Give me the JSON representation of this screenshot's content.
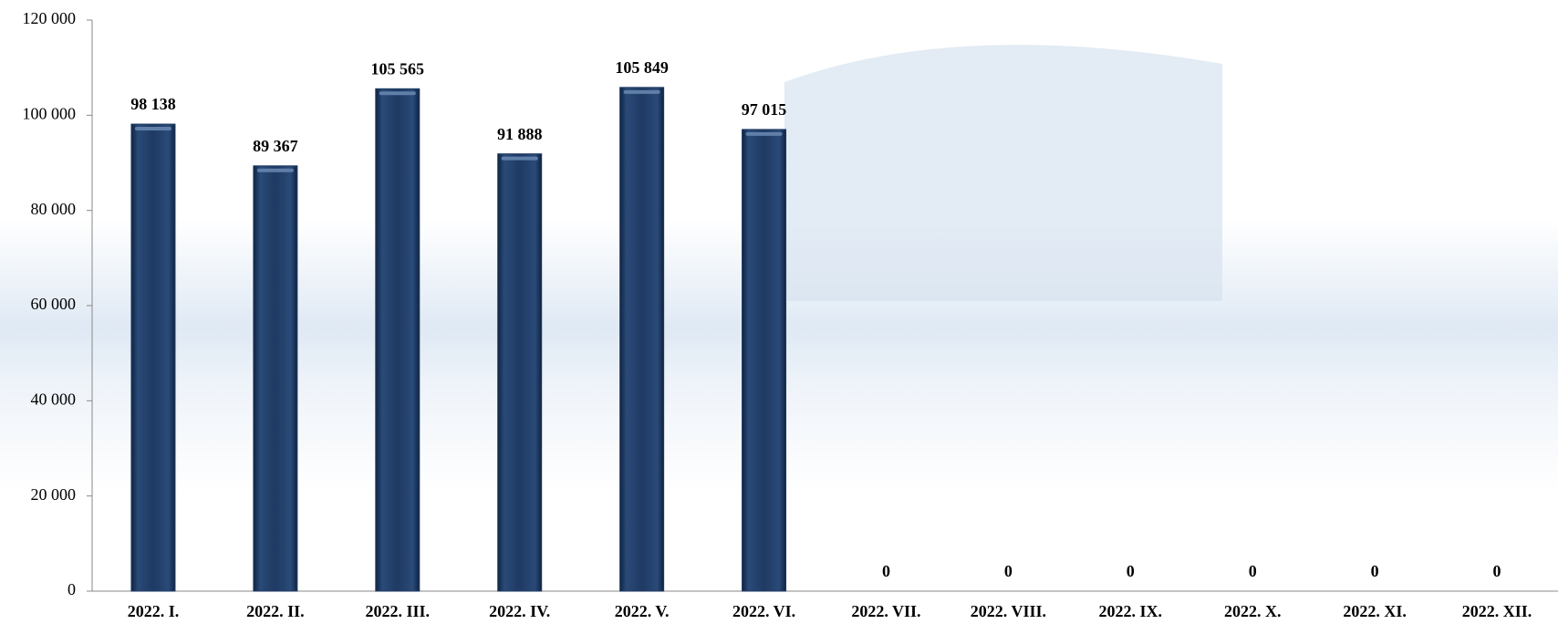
{
  "chart_data": {
    "type": "bar",
    "categories": [
      "2022. I.",
      "2022. II.",
      "2022. III.",
      "2022. IV.",
      "2022. V.",
      "2022. VI.",
      "2022. VII.",
      "2022. VIII.",
      "2022. IX.",
      "2022. X.",
      "2022. XI.",
      "2022. XII."
    ],
    "values": [
      98138,
      89367,
      105565,
      91888,
      105849,
      97015,
      0,
      0,
      0,
      0,
      0,
      0
    ],
    "value_labels": [
      "98 138",
      "89 367",
      "105 565",
      "91 888",
      "105 849",
      "97 015",
      "0",
      "0",
      "0",
      "0",
      "0",
      "0"
    ],
    "color": "#1f3a63",
    "ylim": [
      0,
      120000
    ],
    "yticks": [
      0,
      {
        "value": 20000,
        "label": "20 000"
      },
      {
        "value": 40000,
        "label": "40 000"
      },
      {
        "value": 60000,
        "label": "60 000"
      },
      {
        "value": 80000,
        "label": "80 000"
      },
      {
        "value": 100000,
        "label": "100 000"
      },
      {
        "value": 120000,
        "label": "120 000"
      }
    ],
    "grid": false
  }
}
